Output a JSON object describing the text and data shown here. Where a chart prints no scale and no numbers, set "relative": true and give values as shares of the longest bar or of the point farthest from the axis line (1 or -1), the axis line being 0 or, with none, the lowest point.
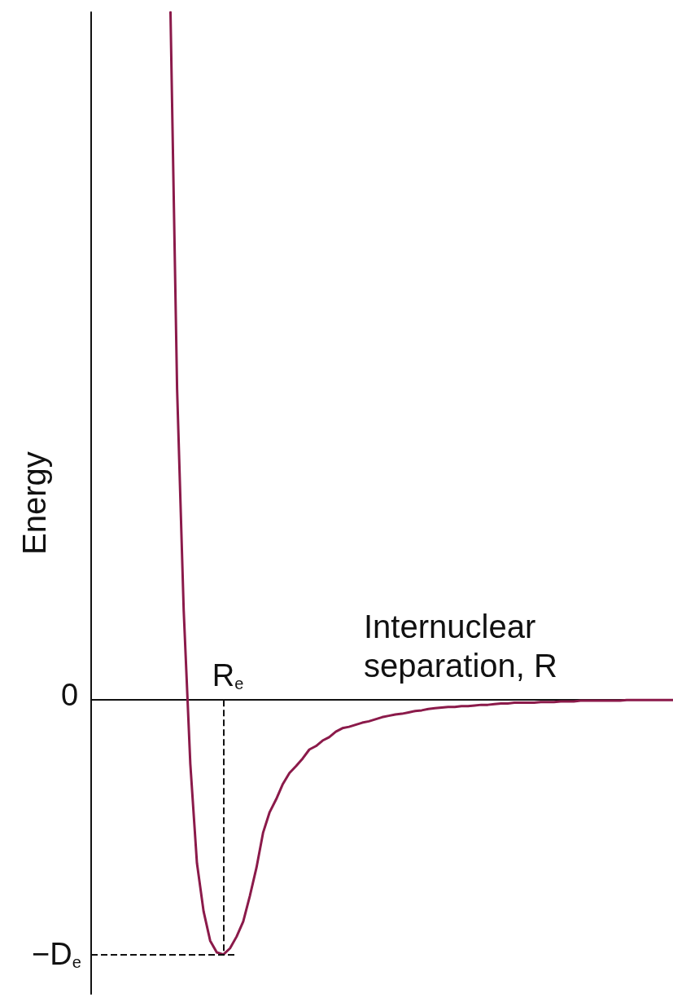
{
  "chart_data": {
    "type": "line",
    "relative": true,
    "ylabel": "Energy",
    "xlabel": "Internuclear separation, R",
    "categories": [
      null,
      null,
      null,
      null,
      null,
      null,
      null,
      null,
      null,
      null,
      null,
      null,
      null,
      null,
      null,
      null,
      null,
      null,
      null,
      null,
      null,
      null,
      null,
      null,
      null,
      null,
      null,
      null,
      null,
      null,
      null,
      null,
      null,
      null,
      null,
      null,
      null,
      null,
      null,
      null,
      null,
      null,
      null,
      null,
      null,
      null,
      null,
      null,
      null,
      null,
      null,
      null,
      null,
      null,
      null,
      null,
      null,
      null,
      null,
      null,
      null,
      null,
      null,
      null,
      null,
      null,
      null,
      null,
      null,
      null,
      null,
      null,
      null,
      null,
      null,
      null,
      null,
      null,
      null,
      null,
      null,
      null,
      null,
      null,
      null,
      null,
      null,
      null,
      null
    ],
    "values": [
      null,
      null,
      null,
      null,
      null,
      null,
      null,
      null,
      null,
      null,
      null,
      null,
      1,
      0.452,
      0.13,
      -0.093,
      -0.237,
      -0.307,
      -0.35,
      -0.367,
      -0.37,
      -0.361,
      -0.344,
      -0.322,
      -0.285,
      -0.244,
      -0.193,
      -0.163,
      -0.144,
      -0.122,
      -0.106,
      -0.096,
      -0.085,
      -0.072,
      -0.067,
      -0.059,
      -0.054,
      -0.046,
      -0.041,
      -0.039,
      -0.036,
      -0.033,
      -0.031,
      -0.028,
      -0.025,
      -0.023,
      -0.021,
      -0.02,
      -0.018,
      -0.016,
      -0.015,
      -0.013,
      -0.012,
      -0.011,
      -0.01,
      -0.01,
      -0.009,
      -0.009,
      -0.008,
      -0.007,
      -0.007,
      -0.006,
      -0.005,
      -0.005,
      -0.004,
      -0.004,
      -0.004,
      -0.004,
      -0.003,
      -0.003,
      -0.003,
      -0.002,
      -0.002,
      -0.002,
      -0.001,
      -0.001,
      -0.001,
      -0.001,
      -0.001,
      -0.001,
      -0.001,
      0,
      0,
      0,
      0,
      0,
      0,
      0,
      0
    ],
    "color": "#8b1a4a",
    "ref_lines": [
      {
        "axis": "x",
        "label": "R$_{e}$",
        "line_style": "dashed"
      },
      {
        "axis": "y",
        "value": -0.37,
        "label": "−D$_{e}$",
        "line_style": "dashed"
      }
    ],
    "annotations": [
      "0"
    ],
    "line_style": "solid"
  }
}
